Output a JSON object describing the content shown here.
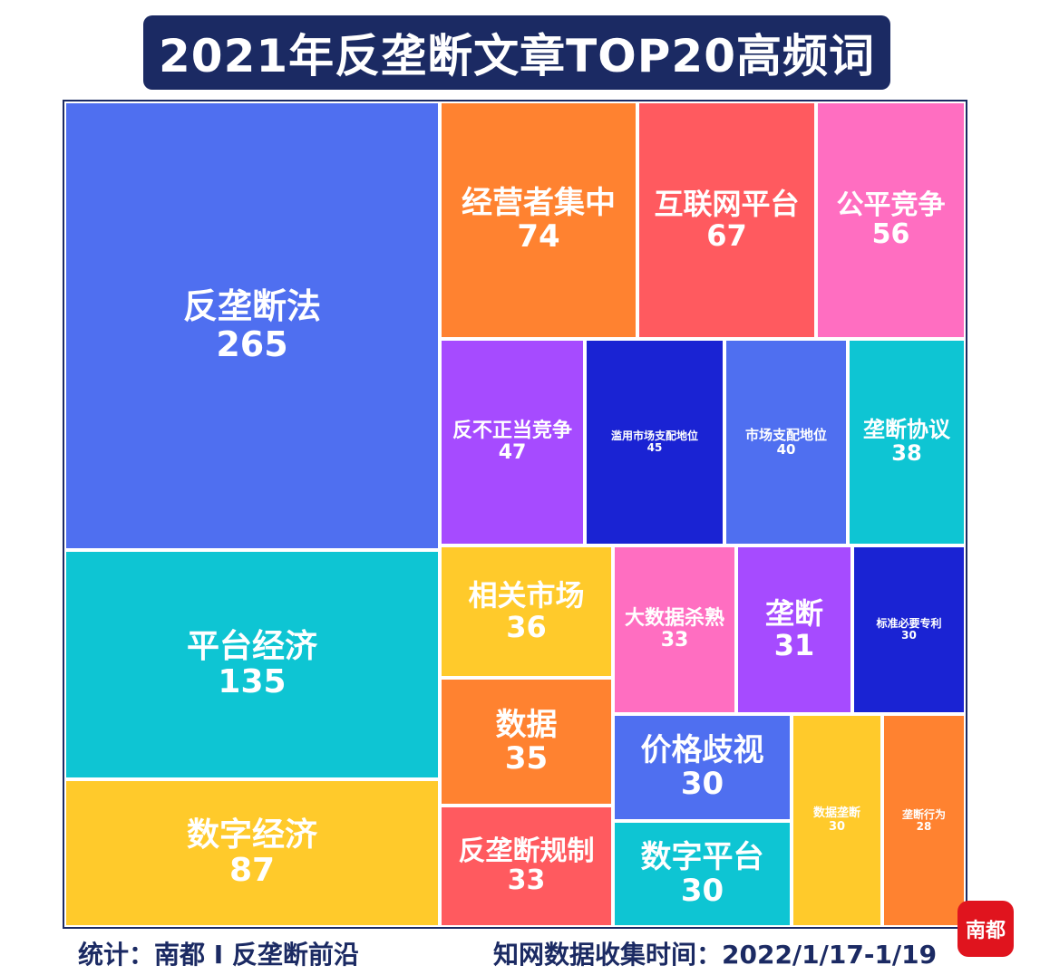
{
  "title": "2021年反垄断文章TOP20高频词",
  "footer": {
    "source": "统计：南都 I 反垄断前沿",
    "period": "知网数据收集时间：2022/1/17-1/19"
  },
  "logo_text": "南都",
  "chart_data": {
    "type": "treemap",
    "title": "2021年反垄断文章TOP20高频词",
    "items": [
      {
        "label": "反垄断法",
        "value": 265,
        "color": "#4f6ff0"
      },
      {
        "label": "平台经济",
        "value": 135,
        "color": "#0ec5d3"
      },
      {
        "label": "数字经济",
        "value": 87,
        "color": "#ffca2b"
      },
      {
        "label": "经营者集中",
        "value": 74,
        "color": "#ff8230"
      },
      {
        "label": "互联网平台",
        "value": 67,
        "color": "#ff5a5f"
      },
      {
        "label": "公平竞争",
        "value": 56,
        "color": "#ff6ec1"
      },
      {
        "label": "反不正当竞争",
        "value": 47,
        "color": "#a64bff"
      },
      {
        "label": "滥用市场支配地位",
        "value": 45,
        "color": "#1a23d3"
      },
      {
        "label": "市场支配地位",
        "value": 40,
        "color": "#4f6ff0"
      },
      {
        "label": "垄断协议",
        "value": 38,
        "color": "#0ec5d3"
      },
      {
        "label": "相关市场",
        "value": 36,
        "color": "#ffca2b"
      },
      {
        "label": "大数据杀熟",
        "value": 33,
        "color": "#ff6ec1"
      },
      {
        "label": "垄断",
        "value": 31,
        "color": "#a64bff"
      },
      {
        "label": "标准必要专利",
        "value": 30,
        "color": "#1a23d3"
      },
      {
        "label": "数据",
        "value": 35,
        "color": "#ff8230"
      },
      {
        "label": "价格歧视",
        "value": 30,
        "color": "#4f6ff0"
      },
      {
        "label": "数据垄断",
        "value": 30,
        "color": "#ffca2b"
      },
      {
        "label": "垄断行为",
        "value": 28,
        "color": "#ff8230"
      },
      {
        "label": "反垄断规制",
        "value": 33,
        "color": "#ff5a5f"
      },
      {
        "label": "数字平台",
        "value": 30,
        "color": "#0ec5d3"
      }
    ]
  }
}
